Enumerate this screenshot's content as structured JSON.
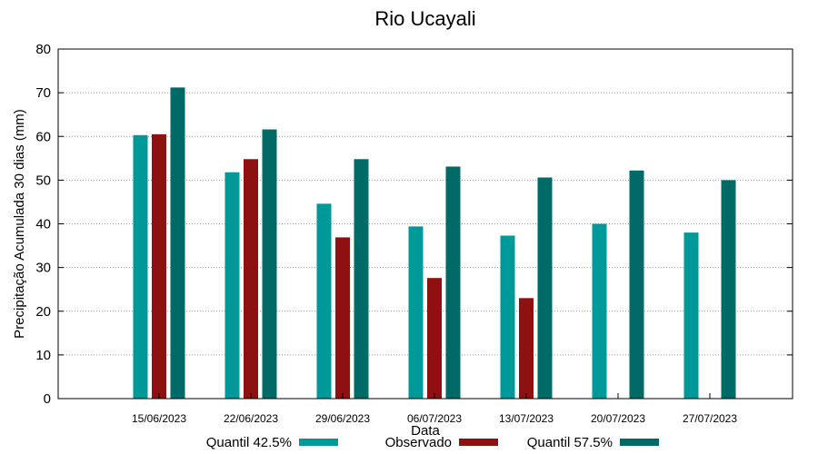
{
  "chart_data": {
    "type": "bar",
    "title": "Rio Ucayali",
    "xlabel": "Data",
    "ylabel": "Precipitação Acumulada 30 dias (mm)",
    "ylim": [
      0,
      80
    ],
    "yticks": [
      0,
      10,
      20,
      30,
      40,
      50,
      60,
      70,
      80
    ],
    "grid": true,
    "legend_position": "bottom",
    "categories": [
      "15/06/2023",
      "22/06/2023",
      "29/06/2023",
      "06/07/2023",
      "13/07/2023",
      "20/07/2023",
      "27/07/2023"
    ],
    "series": [
      {
        "name": "Quantil 42.5%",
        "color": "#009999",
        "values": [
          60.3,
          51.8,
          44.6,
          39.4,
          37.3,
          40.0,
          38.0
        ]
      },
      {
        "name": "Observado",
        "color": "#8f1010",
        "values": [
          60.5,
          54.8,
          36.9,
          27.6,
          23.0,
          null,
          null
        ]
      },
      {
        "name": "Quantil 57.5%",
        "color": "#006b66",
        "values": [
          71.2,
          61.6,
          54.8,
          53.1,
          50.6,
          52.2,
          50.0
        ]
      }
    ]
  }
}
